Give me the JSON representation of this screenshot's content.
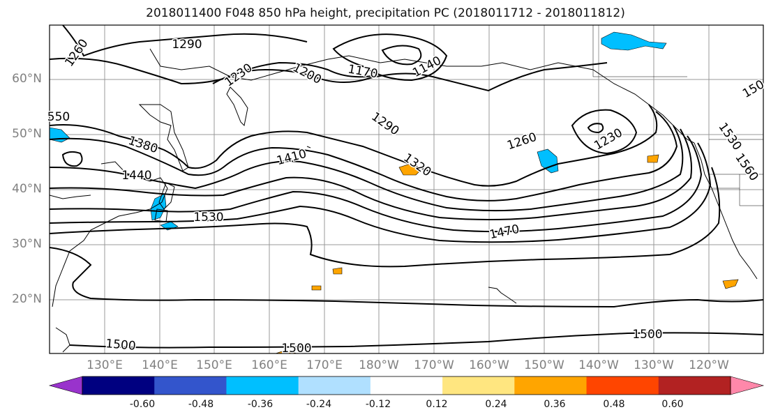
{
  "title": "2018011400 F048 850 hPa height, precipitation PC (2018011712 - 2018011812)",
  "latitude_labels": [
    "60°N",
    "50°N",
    "40°N",
    "30°N",
    "20°N"
  ],
  "longitude_labels": [
    "130°E",
    "140°E",
    "150°E",
    "160°E",
    "170°E",
    "180°W",
    "170°W",
    "160°W",
    "150°W",
    "140°W",
    "130°W",
    "120°W"
  ],
  "contour_labels": [
    "1290",
    "1260",
    "1230",
    "1200",
    "1170",
    "1140",
    "1290",
    "1260",
    "1230",
    "1380",
    "1410",
    "1320",
    "1440",
    "1530",
    "1470",
    "1500",
    "1500",
    "1500",
    "150",
    "550",
    "1530",
    "1560"
  ],
  "colorbar": {
    "tick_labels": [
      "-0.60",
      "-0.48",
      "-0.36",
      "-0.24",
      "-0.12",
      "0.12",
      "0.24",
      "0.36",
      "0.48",
      "0.60"
    ],
    "colors": [
      "#9933cc",
      "#000080",
      "#3355cc",
      "#00bfff",
      "#b0e0ff",
      "#ffffff",
      "#ffe680",
      "#ffa500",
      "#ff4500",
      "#b22222",
      "#ff88aa"
    ]
  },
  "colors": {
    "contour": "#000000",
    "grid": "#999999",
    "coast": "#000000",
    "positive_anomaly": "#ffa500",
    "negative_anomaly": "#00bfff"
  }
}
